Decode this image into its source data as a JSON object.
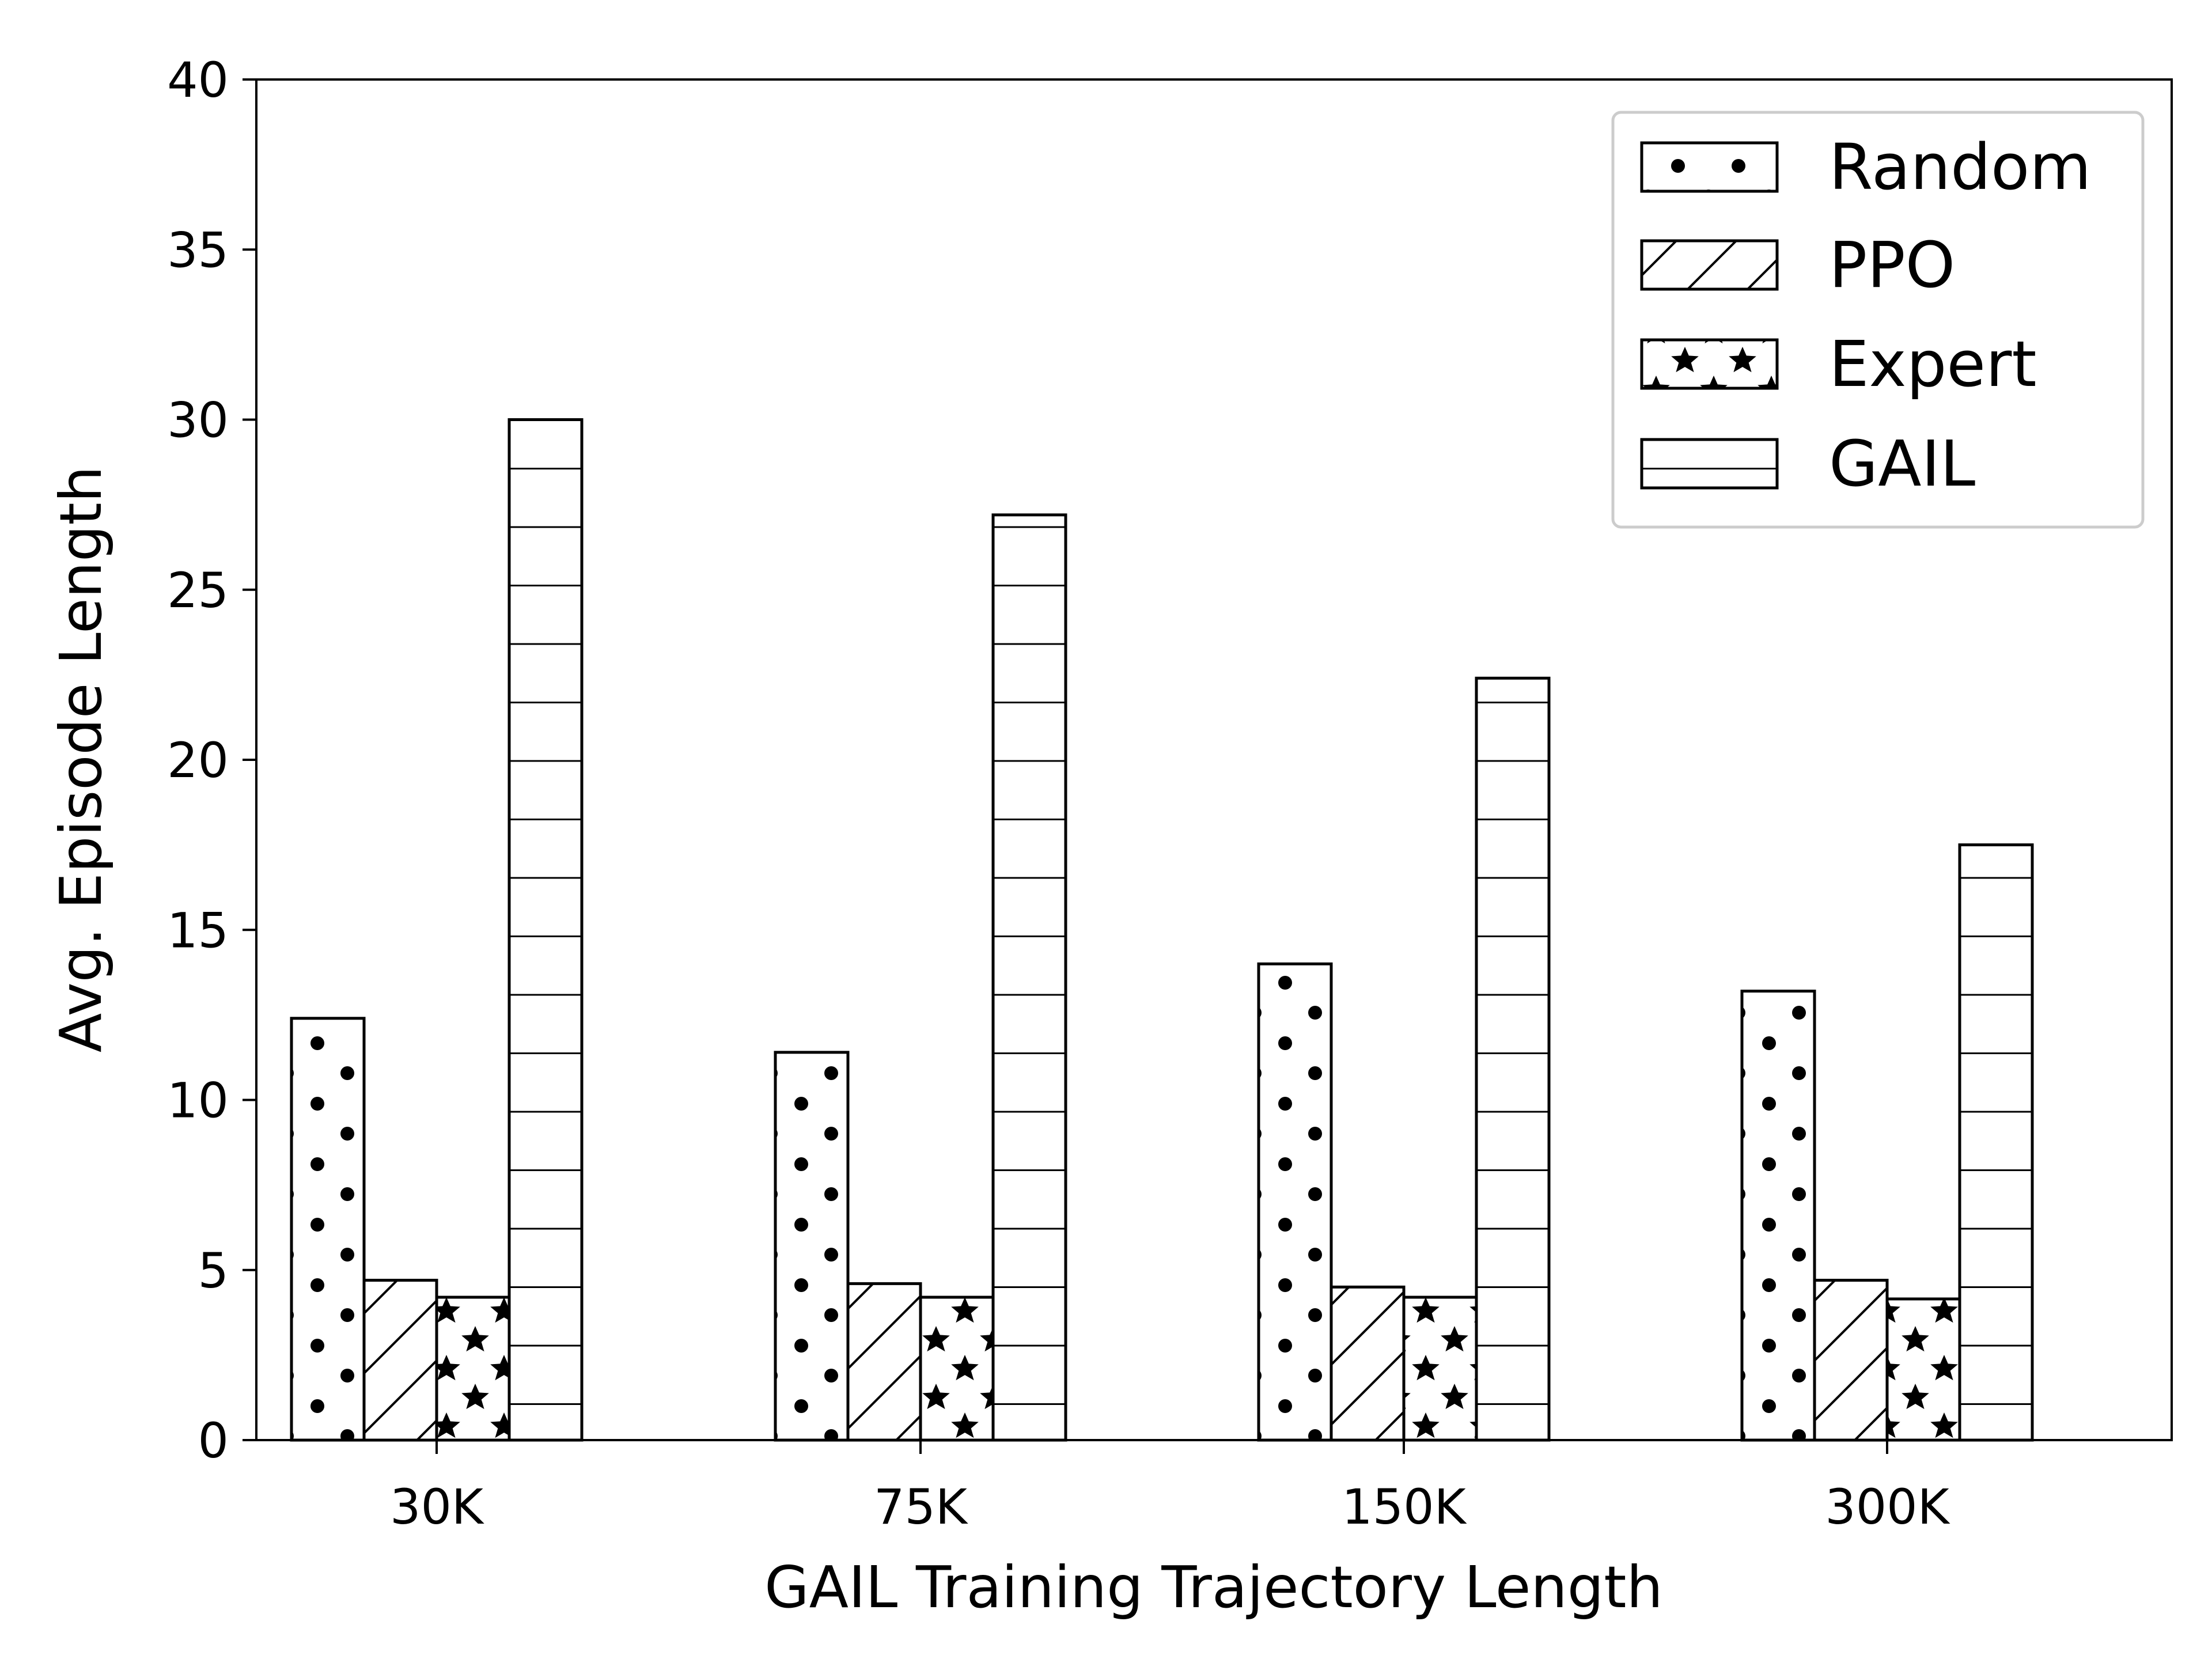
{
  "chart_data": {
    "type": "bar",
    "title": "",
    "xlabel": "GAIL Training Trajectory Length",
    "ylabel": "Avg. Episode Length",
    "categories": [
      "30K",
      "75K",
      "150K",
      "300K"
    ],
    "ylim": [
      0,
      40
    ],
    "yticks": [
      "0",
      "5",
      "10",
      "15",
      "20",
      "25",
      "30",
      "35",
      "40"
    ],
    "grid": false,
    "legend_position": "top-right",
    "series": [
      {
        "name": "Random",
        "hatch": "dots",
        "values": [
          12.4,
          11.4,
          14.0,
          13.2
        ]
      },
      {
        "name": "PPO",
        "hatch": "diagonal",
        "values": [
          4.7,
          4.6,
          4.5,
          4.7
        ]
      },
      {
        "name": "Expert",
        "hatch": "stars",
        "values": [
          4.2,
          4.2,
          4.2,
          4.15
        ]
      },
      {
        "name": "GAIL",
        "hatch": "horizontal",
        "values": [
          30.0,
          27.2,
          22.4,
          17.5
        ]
      }
    ],
    "colors": {
      "edge": "#000000",
      "face": "#ffffff"
    }
  }
}
